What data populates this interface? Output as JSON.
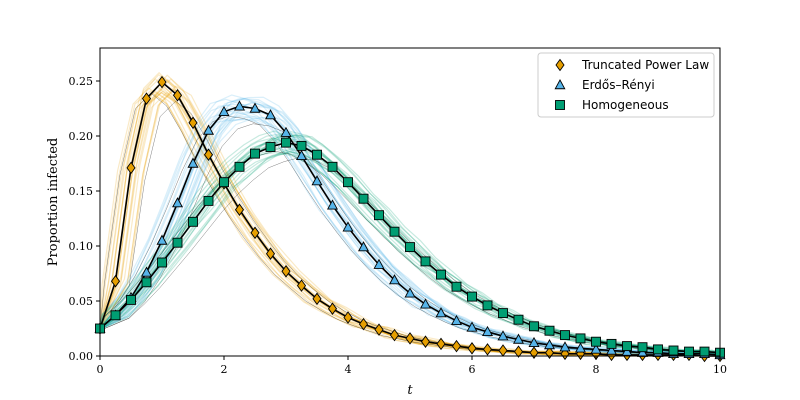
{
  "chart_data": {
    "type": "line",
    "title": "",
    "xlabel": "t",
    "ylabel": "Proportion infected",
    "xlim": [
      0,
      10
    ],
    "ylim": [
      0,
      0.28
    ],
    "x_ticks": [
      0,
      2,
      4,
      6,
      8,
      10
    ],
    "x_tick_labels": [
      "0",
      "2",
      "4",
      "6",
      "8",
      "10"
    ],
    "y_ticks": [
      0,
      0.05,
      0.1,
      0.15,
      0.2,
      0.25
    ],
    "y_tick_labels": [
      "0.00",
      "0.05",
      "0.10",
      "0.15",
      "0.20",
      "0.25"
    ],
    "grid": false,
    "legend_position": "top-right",
    "series": [
      {
        "name": "Truncated Power Law",
        "color": "#e69f00",
        "marker": "diamond",
        "x": [
          0,
          0.25,
          0.5,
          0.75,
          1.0,
          1.25,
          1.5,
          1.75,
          2.0,
          2.25,
          2.5,
          2.75,
          3.0,
          3.25,
          3.5,
          3.75,
          4.0,
          4.25,
          4.5,
          4.75,
          5.0,
          5.25,
          5.5,
          5.75,
          6.0,
          6.25,
          6.5,
          6.75,
          7.0,
          7.25,
          7.5,
          7.75,
          8.0,
          8.25,
          8.5,
          8.75,
          9.0,
          9.25,
          9.5,
          9.75,
          10.0
        ],
        "y": [
          0.025,
          0.068,
          0.171,
          0.234,
          0.249,
          0.237,
          0.212,
          0.183,
          0.157,
          0.133,
          0.112,
          0.093,
          0.077,
          0.064,
          0.052,
          0.043,
          0.035,
          0.029,
          0.024,
          0.019,
          0.016,
          0.013,
          0.011,
          0.009,
          0.007,
          0.006,
          0.005,
          0.004,
          0.003,
          0.003,
          0.002,
          0.002,
          0.002,
          0.001,
          0.001,
          0.001,
          0.001,
          0.001,
          0.001,
          0.0,
          0.0
        ]
      },
      {
        "name": "Erdős–Rényi",
        "color": "#56b4e9",
        "marker": "triangle",
        "x": [
          0,
          0.25,
          0.5,
          0.75,
          1.0,
          1.25,
          1.5,
          1.75,
          2.0,
          2.25,
          2.5,
          2.75,
          3.0,
          3.25,
          3.5,
          3.75,
          4.0,
          4.25,
          4.5,
          4.75,
          5.0,
          5.25,
          5.5,
          5.75,
          6.0,
          6.25,
          6.5,
          6.75,
          7.0,
          7.25,
          7.5,
          7.75,
          8.0,
          8.25,
          8.5,
          8.75,
          9.0,
          9.25,
          9.5,
          9.75,
          10.0
        ],
        "y": [
          0.025,
          0.037,
          0.053,
          0.076,
          0.105,
          0.139,
          0.175,
          0.205,
          0.222,
          0.227,
          0.225,
          0.219,
          0.203,
          0.182,
          0.159,
          0.137,
          0.117,
          0.099,
          0.083,
          0.069,
          0.057,
          0.047,
          0.039,
          0.032,
          0.026,
          0.022,
          0.018,
          0.015,
          0.012,
          0.01,
          0.008,
          0.007,
          0.006,
          0.005,
          0.004,
          0.003,
          0.003,
          0.002,
          0.002,
          0.002,
          0.001
        ]
      },
      {
        "name": "Homogeneous",
        "color": "#009e73",
        "marker": "square",
        "x": [
          0,
          0.25,
          0.5,
          0.75,
          1.0,
          1.25,
          1.5,
          1.75,
          2.0,
          2.25,
          2.5,
          2.75,
          3.0,
          3.25,
          3.5,
          3.75,
          4.0,
          4.25,
          4.5,
          4.75,
          5.0,
          5.25,
          5.5,
          5.75,
          6.0,
          6.25,
          6.5,
          6.75,
          7.0,
          7.25,
          7.5,
          7.75,
          8.0,
          8.25,
          8.5,
          8.75,
          9.0,
          9.25,
          9.5,
          9.75,
          10.0
        ],
        "y": [
          0.025,
          0.037,
          0.051,
          0.067,
          0.085,
          0.103,
          0.122,
          0.141,
          0.158,
          0.172,
          0.184,
          0.19,
          0.194,
          0.191,
          0.183,
          0.172,
          0.158,
          0.143,
          0.128,
          0.113,
          0.099,
          0.086,
          0.074,
          0.063,
          0.054,
          0.046,
          0.039,
          0.033,
          0.027,
          0.023,
          0.019,
          0.016,
          0.013,
          0.011,
          0.009,
          0.008,
          0.006,
          0.005,
          0.004,
          0.004,
          0.003
        ]
      }
    ]
  }
}
